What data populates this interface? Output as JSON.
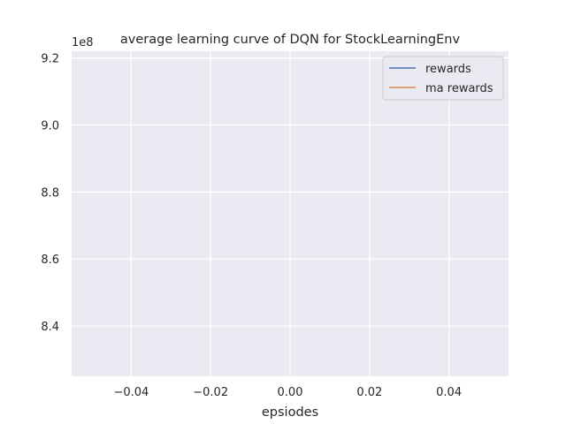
{
  "chart_data": {
    "type": "line",
    "title": "average learning curve of DQN for StockLearningEnv",
    "xlabel": "epsiodes",
    "ylabel": "",
    "xlim": [
      -0.055,
      0.055
    ],
    "ylim": [
      8.25,
      9.22
    ],
    "y_offset_text": "1e8",
    "x_ticks": [
      -0.04,
      -0.02,
      0.0,
      0.02,
      0.04
    ],
    "x_tick_labels": [
      "−0.04",
      "−0.02",
      "0.00",
      "0.02",
      "0.04"
    ],
    "y_ticks": [
      8.4,
      8.6,
      8.8,
      9.0,
      9.2
    ],
    "y_tick_labels": [
      "8.4",
      "8.6",
      "8.8",
      "9.0",
      "9.2"
    ],
    "grid": true,
    "legend_position": "top-right",
    "series": [
      {
        "name": "rewards",
        "color": "#4c72b0",
        "x": [],
        "y": []
      },
      {
        "name": "ma rewards",
        "color": "#dd8452",
        "x": [],
        "y": []
      }
    ]
  }
}
